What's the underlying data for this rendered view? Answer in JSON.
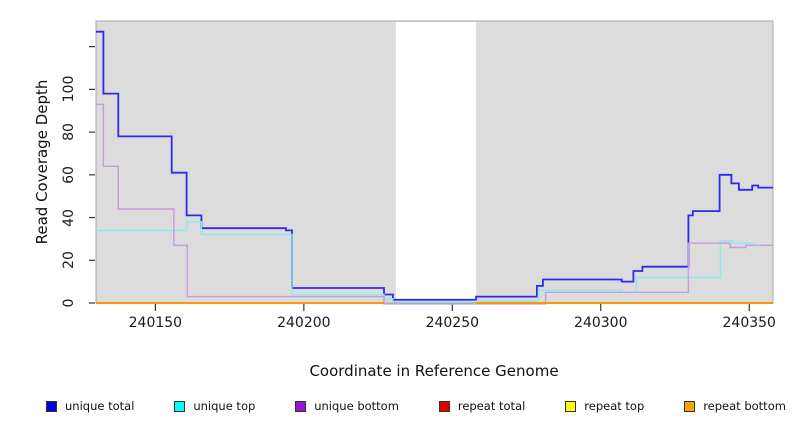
{
  "figure": {
    "xlabel": "Coordinate in Reference Genome",
    "ylabel": "Read Coverage Depth"
  },
  "colors": {
    "plot_background": "#dcdcdc",
    "plot_border": "#a9a9a9",
    "gap_fill": "#ffffff",
    "tick": "#333333"
  },
  "legend": {
    "items": [
      {
        "label": "unique total",
        "color": "#0000e0"
      },
      {
        "label": "unique top",
        "color": "#00ffff"
      },
      {
        "label": "unique bottom",
        "color": "#9b14d6"
      },
      {
        "label": "repeat total",
        "color": "#dd0000"
      },
      {
        "label": "repeat top",
        "color": "#ffff00"
      },
      {
        "label": "repeat bottom",
        "color": "#ffa200"
      }
    ]
  },
  "chart_data": {
    "type": "line",
    "style": "step-after",
    "title": "",
    "xlabel": "Coordinate in Reference Genome",
    "ylabel": "Read Coverage Depth",
    "xlim": [
      240130,
      240358
    ],
    "ylim": [
      0,
      132
    ],
    "grid": false,
    "legend_position": "bottom",
    "x_ticks": [
      {
        "value": 240150,
        "label": "240150"
      },
      {
        "value": 240200,
        "label": "240200"
      },
      {
        "value": 240250,
        "label": "240250"
      },
      {
        "value": 240300,
        "label": "240300"
      },
      {
        "value": 240350,
        "label": "240350"
      }
    ],
    "y_ticks": [
      {
        "value": 0,
        "label": "0"
      },
      {
        "value": 20,
        "label": "20"
      },
      {
        "value": 40,
        "label": "40"
      },
      {
        "value": 60,
        "label": "60"
      },
      {
        "value": 80,
        "label": "80"
      },
      {
        "value": 100,
        "label": "100"
      },
      {
        "value": 120,
        "label": ""
      }
    ],
    "gap_region": {
      "x_start": 240231,
      "x_end": 240258
    },
    "series": [
      {
        "name": "unique total",
        "line_color": "#2b2bf0",
        "line_width": 1.8,
        "segments": [
          [
            [
              240130,
              127
            ],
            [
              240132.5,
              98
            ],
            [
              240137.5,
              78
            ],
            [
              240155.5,
              61
            ],
            [
              240160.5,
              41
            ],
            [
              240165.5,
              35
            ],
            [
              240194,
              34
            ],
            [
              240196,
              7
            ],
            [
              240227,
              4
            ],
            [
              240230,
              1.5
            ],
            [
              240258,
              3
            ],
            [
              240278.5,
              8
            ],
            [
              240280.5,
              11
            ],
            [
              240307,
              10
            ],
            [
              240311,
              15
            ],
            [
              240314,
              17
            ],
            [
              240329.5,
              41
            ],
            [
              240331,
              43
            ],
            [
              240340,
              60
            ],
            [
              240344,
              56
            ],
            [
              240346.5,
              53
            ],
            [
              240351,
              55
            ],
            [
              240353,
              54
            ],
            [
              240358,
              54
            ]
          ]
        ]
      },
      {
        "name": "unique top",
        "line_color": "#8de7f0",
        "line_width": 1.4,
        "segments": [
          [
            [
              240130,
              34
            ],
            [
              240160.5,
              38
            ],
            [
              240165.5,
              32
            ],
            [
              240196,
              4
            ],
            [
              240227,
              2
            ],
            [
              240230,
              0.5
            ],
            [
              240258,
              1
            ],
            [
              240279,
              6
            ],
            [
              240307,
              5
            ],
            [
              240312,
              12
            ],
            [
              240340.3,
              29
            ],
            [
              240344.5,
              28
            ],
            [
              240351.5,
              27
            ],
            [
              240358,
              27
            ]
          ]
        ]
      },
      {
        "name": "unique bottom",
        "line_color": "#c89ade",
        "line_width": 1.4,
        "segments": [
          [
            [
              240130,
              93
            ],
            [
              240132.5,
              64
            ],
            [
              240137.5,
              44
            ],
            [
              240156.2,
              27
            ],
            [
              240160.7,
              3
            ],
            [
              240227,
              -0.4
            ],
            [
              240281.4,
              5
            ],
            [
              240329.5,
              28
            ],
            [
              240343.6,
              26
            ],
            [
              240348.8,
              27
            ],
            [
              240358,
              27
            ]
          ]
        ]
      },
      {
        "name": "repeat total",
        "line_color": "#e04040",
        "line_width": 1.5,
        "segments": [
          [
            [
              240130,
              0
            ],
            [
              240227,
              0
            ]
          ],
          [
            [
              240258,
              0
            ],
            [
              240358,
              0
            ]
          ]
        ]
      },
      {
        "name": "repeat top",
        "line_color": "#ffff00",
        "line_width": 1.5,
        "segments": [
          [
            [
              240130,
              0
            ],
            [
              240227,
              0
            ]
          ],
          [
            [
              240258,
              0
            ],
            [
              240358,
              0
            ]
          ]
        ]
      },
      {
        "name": "repeat bottom",
        "line_color": "#ff8c00",
        "line_width": 1.8,
        "segments": [
          [
            [
              240130,
              0
            ],
            [
              240227,
              0
            ]
          ],
          [
            [
              240258,
              0
            ],
            [
              240358,
              0
            ]
          ]
        ]
      }
    ]
  }
}
